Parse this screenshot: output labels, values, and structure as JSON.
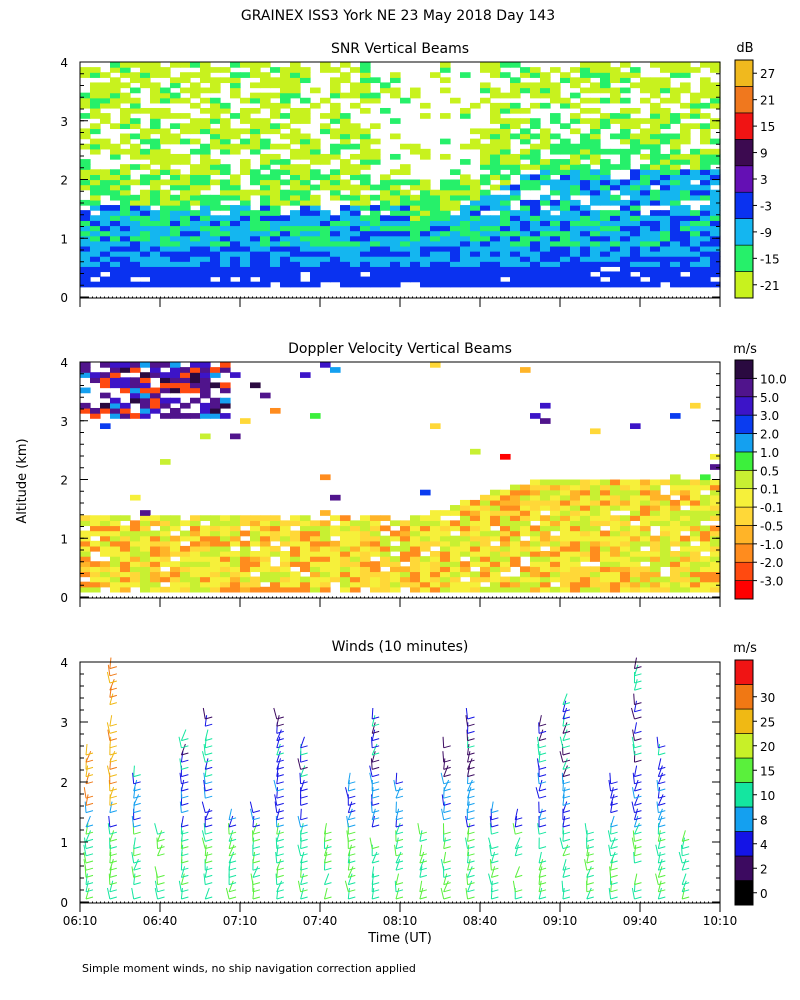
{
  "title": "GRAINEX ISS3 York NE  23 May 2018 Day 143",
  "ylabel_shared": "Altitude (km)",
  "footnote": "Simple moment winds, no ship navigation correction applied",
  "palette": {
    "snr": [
      "#c8f21e",
      "#26f06a",
      "#14b6f0",
      "#0a32f0",
      "#6410b4",
      "#3c0a50",
      "#f01414",
      "#f0781e",
      "#f0b91e"
    ],
    "dop": [
      "#ff0000",
      "#ff4a10",
      "#ff8c1e",
      "#ffb428",
      "#ffd838",
      "#f6f03a",
      "#c8f032",
      "#3cf03c",
      "#14a0f0",
      "#0a3cf0",
      "#3c14c8",
      "#50148c",
      "#2a0a40"
    ],
    "wind": [
      "#000000",
      "#3c0a60",
      "#1414e6",
      "#14a0f0",
      "#14e6a0",
      "#5af03c",
      "#c8f028",
      "#f0b914",
      "#f07814",
      "#f01414"
    ]
  },
  "chart_data": [
    {
      "type": "heatmap",
      "title": "SNR Vertical Beams",
      "ylim": [
        0,
        4
      ],
      "y_ticks": [
        "0",
        "1",
        "2",
        "3",
        "4"
      ],
      "colorbar_unit": "dB",
      "colorbar_labels": [
        "-21",
        "-15",
        "-9",
        "-3",
        "3",
        "9",
        "15",
        "21",
        "27"
      ],
      "field_description": "high SNR (blue/dark) below 1 km, green to yellow aloft to ~4 km, white gaps where no echo"
    },
    {
      "type": "heatmap",
      "title": "Doppler Velocity Vertical Beams",
      "ylim": [
        0,
        4
      ],
      "y_ticks": [
        "0",
        "1",
        "2",
        "3",
        "4"
      ],
      "colorbar_unit": "m/s",
      "colorbar_labels": [
        "-3.0",
        "-2.0",
        "-1.0",
        "-0.5",
        "-0.1",
        "0.1",
        "0.5",
        "1.0",
        "2.0",
        "3.0",
        "5.0",
        "10.0"
      ]
    },
    {
      "type": "scatter",
      "title": "Winds (10 minutes)",
      "ylim": [
        0,
        4
      ],
      "y_ticks": [
        "0",
        "1",
        "2",
        "3",
        "4"
      ],
      "x_tick_labels": [
        "06:10",
        "06:40",
        "07:10",
        "07:40",
        "08:10",
        "08:40",
        "09:10",
        "09:40",
        "10:10"
      ],
      "xlabel": "Time (UT)",
      "colorbar_unit": "m/s",
      "colorbar_labels": [
        "0",
        "2",
        "4",
        "8",
        "10",
        "15",
        "20",
        "25",
        "30"
      ]
    }
  ]
}
